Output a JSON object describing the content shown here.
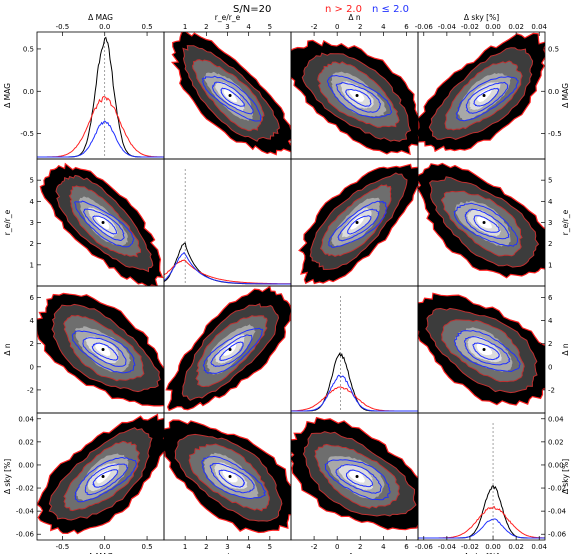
{
  "title": "S/N=20",
  "legend": [
    {
      "label": "n > 2.0",
      "color": "#ff2020"
    },
    {
      "label": "n ≤ 2.0",
      "color": "#2030ff"
    }
  ],
  "colors": {
    "red": "#ff2020",
    "blue": "#2030ff",
    "black": "#000000"
  },
  "chart_data": {
    "type": "corner",
    "title": "S/N=20",
    "variables": [
      {
        "key": "dmag",
        "label": "Δ MAG",
        "range": [
          -0.8,
          0.7
        ],
        "ticks": [
          -0.5,
          0.0,
          0.5
        ],
        "tick_labels": [
          "-0.5",
          "0.0",
          "0.5"
        ]
      },
      {
        "key": "rer",
        "label": "r_e/r_e",
        "range": [
          0,
          6
        ],
        "ticks": [
          1,
          2,
          3,
          4,
          5
        ],
        "tick_labels": [
          "1",
          "2",
          "3",
          "4",
          "5"
        ]
      },
      {
        "key": "dn",
        "label": "Δ n",
        "range": [
          -4,
          7
        ],
        "ticks": [
          -4,
          -2,
          0,
          2,
          4,
          6
        ],
        "tick_labels": [
          "-4",
          "-2",
          "0",
          "2",
          "4",
          "6"
        ]
      },
      {
        "key": "dsky",
        "label": "Δ sky [%]",
        "range": [
          -0.065,
          0.045
        ],
        "ticks": [
          -0.06,
          -0.04,
          -0.02,
          0.0,
          0.02,
          0.04
        ],
        "tick_labels": [
          "-0.06",
          "-0.04",
          "-0.02",
          "0.00",
          "0.02",
          "0.04"
        ]
      }
    ],
    "diagonal_histograms": [
      {
        "variable": "dmag",
        "peaks": {
          "black": 1.0,
          "red": 0.5,
          "blue": 0.3
        },
        "center": 0.0
      },
      {
        "variable": "rer",
        "peaks": {
          "black": 0.34,
          "red": 0.2,
          "blue": 0.26
        },
        "center": 1.0
      },
      {
        "variable": "dn",
        "peaks": {
          "black": 0.48,
          "red": 0.2,
          "blue": 0.3
        },
        "center": 0.3
      },
      {
        "variable": "dsky",
        "peaks": {
          "black": 0.44,
          "red": 0.26,
          "blue": 0.16
        },
        "center": 0.0
      }
    ],
    "correlations": {
      "dmag-rer": -0.9,
      "dmag-dn": -0.6,
      "dmag-dsky": 0.7,
      "rer-dn": 0.85,
      "rer-dsky": -0.6,
      "dn-dsky": -0.5
    }
  }
}
